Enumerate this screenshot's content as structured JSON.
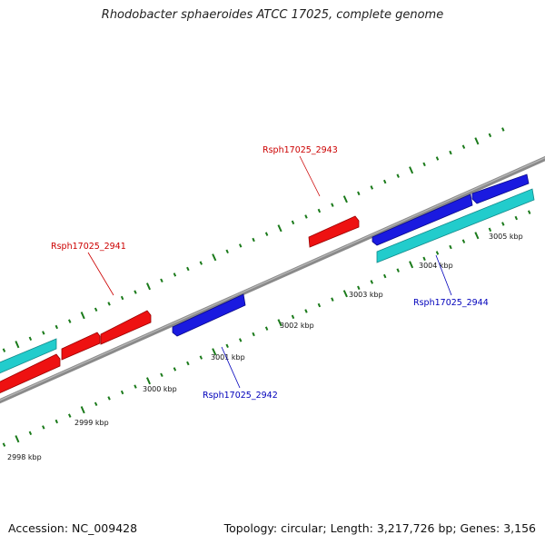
{
  "title": "Rhodobacter sphaeroides ATCC 17025, complete genome",
  "footer": {
    "accession": "Accession: NC_009428",
    "summary": "Topology: circular; Length: 3,217,726 bp; Genes: 3,156"
  },
  "colors": {
    "backbone": "#8a8a8a",
    "tick": "#1a7a1a",
    "forward_gene": "#ee1111",
    "reverse_gene": "#1a1ae0",
    "rna_feature": "#22cccc",
    "forward_label": "#cc0000",
    "reverse_label": "#0000bb"
  },
  "ticks": [
    {
      "label": "2998 kbp"
    },
    {
      "label": "2999 kbp"
    },
    {
      "label": "3000 kbp"
    },
    {
      "label": "3001 kbp"
    },
    {
      "label": "3002 kbp"
    },
    {
      "label": "3003 kbp"
    },
    {
      "label": "3004 kbp"
    },
    {
      "label": "3005 kbp"
    }
  ],
  "gene_labels": [
    {
      "name": "Rsph17025_2941",
      "strand": "forward"
    },
    {
      "name": "Rsph17025_2942",
      "strand": "reverse"
    },
    {
      "name": "Rsph17025_2943",
      "strand": "forward"
    },
    {
      "name": "Rsph17025_2944",
      "strand": "reverse"
    }
  ]
}
